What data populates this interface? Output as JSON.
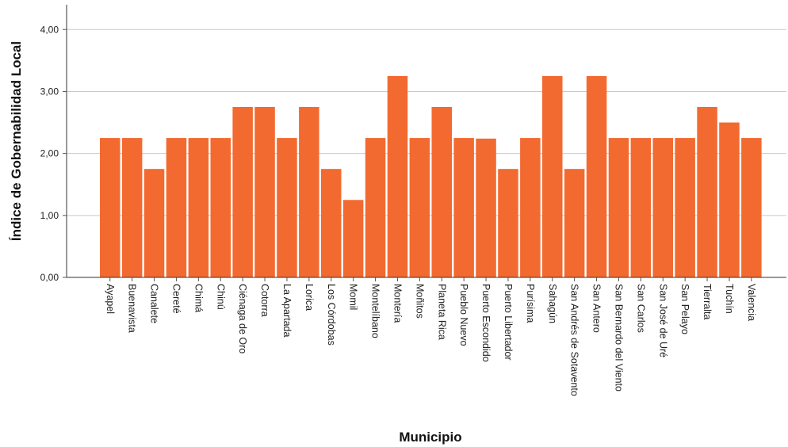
{
  "chart_data": {
    "type": "bar",
    "xlabel": "Municipio",
    "ylabel": "Índice de Gobernabilidad Local",
    "ylim": [
      0,
      4.4
    ],
    "yticks": [
      "0,00",
      "1,00",
      "2,00",
      "3,00",
      "4,00"
    ],
    "ytick_values": [
      0,
      1,
      2,
      3,
      4
    ],
    "grid": "horizontal",
    "bar_color": "#f26a30",
    "categories": [
      "Ayapel",
      "Buenavista",
      "Canalete",
      "Cereté",
      "Chimá",
      "Chinú",
      "Ciénaga de Oro",
      "Cotorra",
      "La Apartada",
      "Lorica",
      "Los Córdobas",
      "Momil",
      "Montelíbano",
      "Montería",
      "Moñitos",
      "Planeta Rica",
      "Pueblo Nuevo",
      "Puerto Escondido",
      "Puerto Libertador",
      "Purísima",
      "Sahagún",
      "San Andrés de Sotavento",
      "San Antero",
      "San Bernardo del Viento",
      "San Carlos",
      "San José de Uré",
      "San Pelayo",
      "Tierralta",
      "Tuchín",
      "Valencia"
    ],
    "values": [
      2.25,
      2.25,
      1.75,
      2.25,
      2.25,
      2.25,
      2.75,
      2.75,
      2.25,
      2.75,
      1.75,
      1.25,
      2.25,
      3.25,
      2.25,
      2.75,
      2.25,
      2.24,
      1.75,
      2.25,
      3.25,
      1.75,
      3.25,
      2.25,
      2.25,
      2.25,
      2.25,
      2.75,
      2.5,
      2.25
    ]
  }
}
